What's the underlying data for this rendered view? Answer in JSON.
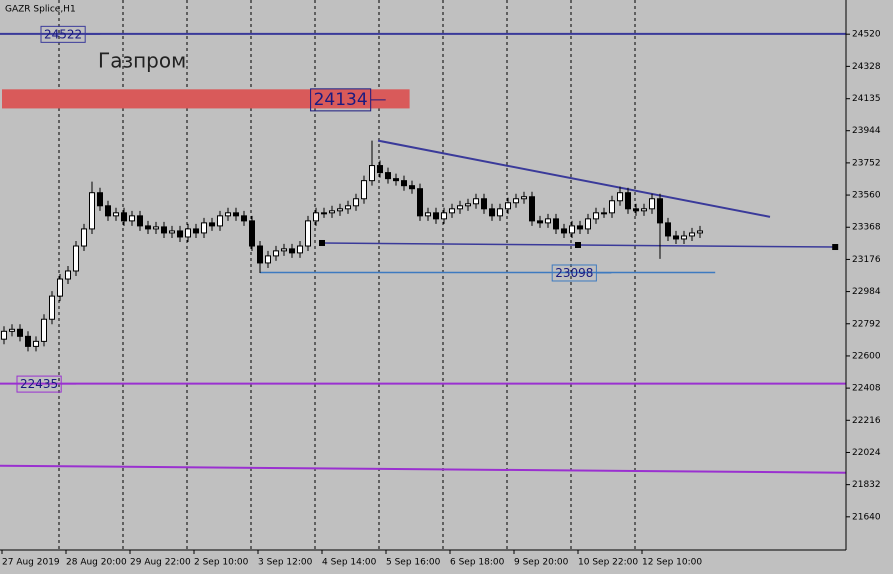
{
  "chart_data": {
    "type": "candlestick",
    "title": "GAZR Splice,H1",
    "annotation": "Газпром",
    "open": [
      22700,
      22747,
      22759,
      22717,
      22657,
      22687,
      22819,
      22957,
      23059,
      23107,
      23256,
      23358,
      23574,
      23496,
      23436,
      23454,
      23406,
      23436,
      23376,
      23358,
      23370,
      23334,
      23346,
      23310,
      23358,
      23334,
      23394,
      23376,
      23436,
      23454,
      23436,
      23406,
      23256,
      23155,
      23197,
      23227,
      23239,
      23215,
      23256,
      23406,
      23454,
      23454,
      23466,
      23478,
      23496,
      23538,
      23646,
      23736,
      23694,
      23658,
      23646,
      23616,
      23598,
      23436,
      23454,
      23418,
      23454,
      23478,
      23496,
      23508,
      23538,
      23478,
      23436,
      23478,
      23514,
      23538,
      23550,
      23406,
      23394,
      23418,
      23358,
      23334,
      23376,
      23358,
      23418,
      23454,
      23454,
      23526,
      23574,
      23478,
      23466,
      23478,
      23538,
      23394,
      23316,
      23298,
      23316,
      23334
    ],
    "high": [
      22777,
      22789,
      22789,
      22747,
      22717,
      22849,
      22987,
      23089,
      23137,
      23286,
      23388,
      23640,
      23604,
      23526,
      23484,
      23484,
      23466,
      23466,
      23406,
      23400,
      23400,
      23376,
      23376,
      23388,
      23388,
      23424,
      23424,
      23466,
      23484,
      23484,
      23466,
      23436,
      23286,
      23227,
      23257,
      23269,
      23269,
      23286,
      23436,
      23484,
      23484,
      23496,
      23508,
      23526,
      23568,
      23676,
      23885,
      23766,
      23724,
      23688,
      23676,
      23646,
      23628,
      23484,
      23484,
      23484,
      23508,
      23526,
      23538,
      23568,
      23568,
      23508,
      23508,
      23544,
      23568,
      23580,
      23580,
      23436,
      23448,
      23448,
      23388,
      23406,
      23406,
      23448,
      23484,
      23484,
      23556,
      23610,
      23604,
      23508,
      23508,
      23568,
      23568,
      23424,
      23346,
      23346,
      23364,
      23376
    ],
    "low": [
      22670,
      22717,
      22687,
      22627,
      22627,
      22657,
      22789,
      22927,
      23029,
      23077,
      23226,
      23328,
      23466,
      23406,
      23406,
      23376,
      23376,
      23346,
      23328,
      23328,
      23304,
      23304,
      23280,
      23280,
      23304,
      23304,
      23346,
      23346,
      23406,
      23406,
      23376,
      23226,
      23095,
      23125,
      23167,
      23197,
      23185,
      23185,
      23226,
      23376,
      23424,
      23424,
      23436,
      23448,
      23466,
      23508,
      23616,
      23664,
      23628,
      23616,
      23586,
      23568,
      23406,
      23406,
      23388,
      23388,
      23424,
      23448,
      23466,
      23478,
      23448,
      23406,
      23406,
      23448,
      23484,
      23508,
      23376,
      23364,
      23364,
      23328,
      23304,
      23304,
      23328,
      23328,
      23388,
      23424,
      23424,
      23496,
      23448,
      23436,
      23436,
      23448,
      23179,
      23286,
      23268,
      23268,
      23286,
      23304
    ],
    "close": [
      22747,
      22759,
      22717,
      22657,
      22687,
      22819,
      22957,
      23059,
      23107,
      23256,
      23358,
      23574,
      23496,
      23436,
      23454,
      23406,
      23436,
      23376,
      23358,
      23370,
      23334,
      23346,
      23310,
      23358,
      23334,
      23394,
      23376,
      23436,
      23454,
      23436,
      23406,
      23256,
      23155,
      23197,
      23227,
      23239,
      23215,
      23256,
      23406,
      23454,
      23454,
      23466,
      23478,
      23496,
      23538,
      23646,
      23736,
      23694,
      23658,
      23646,
      23616,
      23598,
      23436,
      23454,
      23418,
      23454,
      23478,
      23496,
      23508,
      23538,
      23478,
      23436,
      23478,
      23514,
      23538,
      23550,
      23406,
      23394,
      23418,
      23358,
      23334,
      23376,
      23358,
      23418,
      23454,
      23454,
      23526,
      23574,
      23478,
      23466,
      23478,
      23538,
      23394,
      23316,
      23298,
      23316,
      23334,
      23346
    ],
    "xticks": [
      {
        "value": 0,
        "label": "27 Aug 2019"
      },
      {
        "value": 8,
        "label": "28 Aug 20:00"
      },
      {
        "value": 16,
        "label": "29 Aug 22:00"
      },
      {
        "value": 24,
        "label": "2 Sep 10:00"
      },
      {
        "value": 32,
        "label": "3 Sep 12:00"
      },
      {
        "value": 40,
        "label": "4 Sep 14:00"
      },
      {
        "value": 48,
        "label": "5 Sep 16:00"
      },
      {
        "value": 56,
        "label": "6 Sep 18:00"
      },
      {
        "value": 64,
        "label": "9 Sep 20:00"
      },
      {
        "value": 72,
        "label": "10 Sep 22:00"
      },
      {
        "value": 80,
        "label": "12 Sep 10:00"
      }
    ],
    "ylim": [
      21442,
      24724
    ],
    "yticks": [
      24520,
      24328,
      24135,
      23944,
      23752,
      23560,
      23368,
      23176,
      22984,
      22792,
      22600,
      22408,
      22216,
      22024,
      21832,
      21640
    ],
    "levels": [
      {
        "value": 24522,
        "color": "#3a3a9a",
        "label_at": 5
      },
      {
        "value": 22435,
        "color": "#9a30d0",
        "label_at": 2
      }
    ],
    "zone": {
      "value": 24134,
      "from": 24191,
      "to": 24077,
      "x_end": 50.7,
      "label_at": 38.7,
      "color": "#d95a5a"
    },
    "segment": {
      "value": 23098,
      "x": [
        32,
        88.9
      ],
      "label_at": 68.9,
      "color": "#3d7ac0"
    },
    "trendlines": [
      {
        "x": [
          46.75,
          95.75
        ],
        "y": [
          23885,
          23430
        ],
        "color": "#3a3a9a"
      },
      {
        "x": [
          -0.5,
          105.3
        ],
        "y": [
          21945,
          21903
        ],
        "color": "#9a30d0"
      }
    ],
    "support": {
      "x": [
        39.75,
        71.75,
        103.9
      ],
      "y": [
        23274,
        23262,
        23250
      ],
      "color": "#3a3a9a"
    }
  }
}
